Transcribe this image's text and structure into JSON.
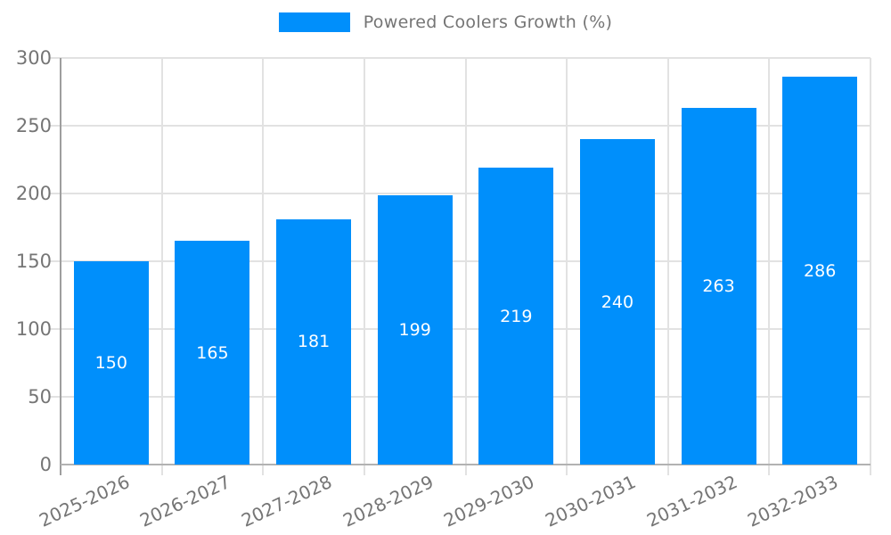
{
  "legend": {
    "label": "Powered Coolers Growth (%)"
  },
  "colors": {
    "bar": "#008FFB",
    "grid": "#e2e2e2",
    "axis_spine": "#9e9e9e",
    "axis_bottom": "#b2b2b2",
    "tick_label": "#757575",
    "value_label": "#ffffff",
    "background": "#ffffff"
  },
  "chart_data": {
    "type": "bar",
    "title": "",
    "xlabel": "",
    "ylabel": "",
    "legend_label": "Powered Coolers Growth (%)",
    "legend_position": "top-center",
    "categories": [
      "2025-2026",
      "2026-2027",
      "2027-2028",
      "2028-2029",
      "2029-2030",
      "2030-2031",
      "2031-2032",
      "2032-2033"
    ],
    "values": [
      150,
      165,
      181,
      199,
      219,
      240,
      263,
      286
    ],
    "ylim": [
      0,
      300
    ],
    "yticks": [
      0,
      50,
      100,
      150,
      200,
      250,
      300
    ],
    "grid": true,
    "bar_value_labels": true,
    "x_label_rotation_deg": -25
  }
}
